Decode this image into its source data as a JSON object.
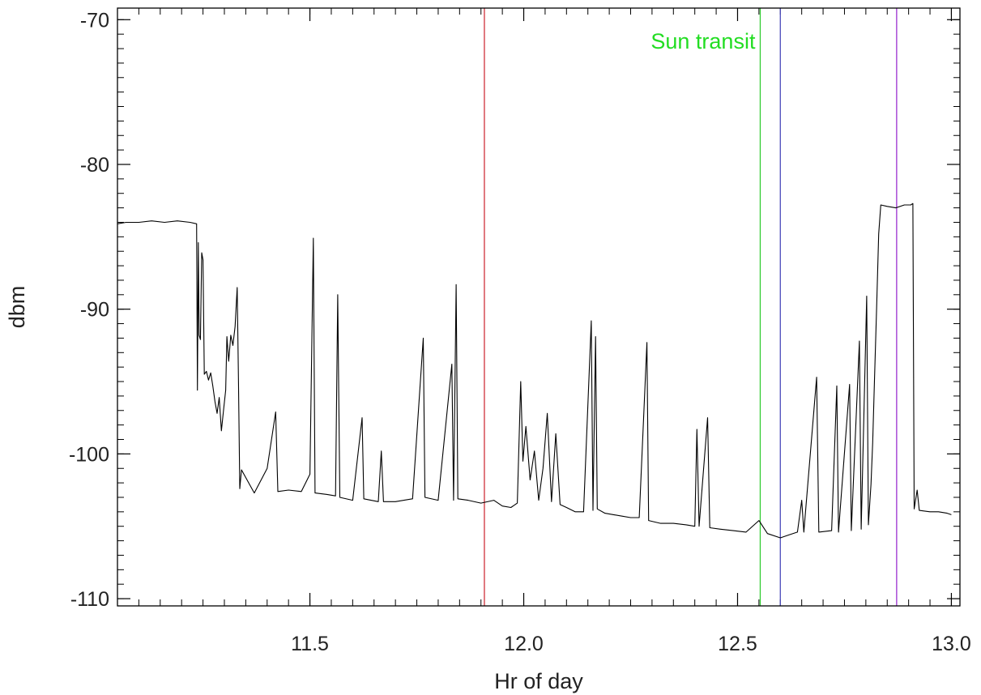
{
  "chart_data": {
    "type": "line",
    "title": "",
    "xlabel": "Hr of day",
    "ylabel": "dbm",
    "xlim": [
      11.05,
      13.02
    ],
    "ylim": [
      -110.5,
      -69.2
    ],
    "x_ticks": [
      11.5,
      12.0,
      12.5,
      13.0
    ],
    "x_tick_labels": [
      "11.5",
      "12.0",
      "12.5",
      "13.0"
    ],
    "x_minor_step": 0.05,
    "y_ticks": [
      -110,
      -100,
      -90,
      -80,
      -70
    ],
    "y_tick_labels": [
      "-110",
      "-100",
      "-90",
      "-80",
      "-70"
    ],
    "y_minor_step": 1,
    "grid": false,
    "series": [
      {
        "color": "#000000",
        "points": [
          [
            11.05,
            -84.1
          ],
          [
            11.07,
            -84.0
          ],
          [
            11.1,
            -84.0
          ],
          [
            11.13,
            -83.9
          ],
          [
            11.16,
            -84.0
          ],
          [
            11.19,
            -83.9
          ],
          [
            11.22,
            -84.0
          ],
          [
            11.235,
            -84.1
          ],
          [
            11.237,
            -95.6
          ],
          [
            11.239,
            -85.4
          ],
          [
            11.241,
            -91.8
          ],
          [
            11.244,
            -92.1
          ],
          [
            11.247,
            -86.1
          ],
          [
            11.25,
            -86.6
          ],
          [
            11.253,
            -94.5
          ],
          [
            11.258,
            -94.3
          ],
          [
            11.263,
            -94.9
          ],
          [
            11.268,
            -94.4
          ],
          [
            11.273,
            -95.3
          ],
          [
            11.278,
            -96.4
          ],
          [
            11.283,
            -97.2
          ],
          [
            11.288,
            -96.1
          ],
          [
            11.293,
            -98.4
          ],
          [
            11.298,
            -97.0
          ],
          [
            11.303,
            -95.6
          ],
          [
            11.306,
            -91.9
          ],
          [
            11.31,
            -93.6
          ],
          [
            11.315,
            -91.8
          ],
          [
            11.32,
            -92.5
          ],
          [
            11.325,
            -91.2
          ],
          [
            11.33,
            -88.5
          ],
          [
            11.333,
            -95.0
          ],
          [
            11.336,
            -102.4
          ],
          [
            11.34,
            -101.1
          ],
          [
            11.37,
            -102.7
          ],
          [
            11.4,
            -101.0
          ],
          [
            11.42,
            -97.1
          ],
          [
            11.425,
            -102.6
          ],
          [
            11.45,
            -102.5
          ],
          [
            11.48,
            -102.6
          ],
          [
            11.5,
            -101.4
          ],
          [
            11.508,
            -85.1
          ],
          [
            11.512,
            -102.7
          ],
          [
            11.54,
            -102.8
          ],
          [
            11.56,
            -102.9
          ],
          [
            11.565,
            -89.0
          ],
          [
            11.57,
            -103.0
          ],
          [
            11.6,
            -103.2
          ],
          [
            11.622,
            -97.5
          ],
          [
            11.626,
            -103.1
          ],
          [
            11.66,
            -103.3
          ],
          [
            11.667,
            -99.8
          ],
          [
            11.672,
            -103.3
          ],
          [
            11.7,
            -103.3
          ],
          [
            11.74,
            -103.1
          ],
          [
            11.765,
            -92.0
          ],
          [
            11.769,
            -103.0
          ],
          [
            11.8,
            -103.2
          ],
          [
            11.832,
            -93.8
          ],
          [
            11.836,
            -103.2
          ],
          [
            11.842,
            -88.3
          ],
          [
            11.846,
            -103.1
          ],
          [
            11.87,
            -103.2
          ],
          [
            11.9,
            -103.4
          ],
          [
            11.93,
            -103.2
          ],
          [
            11.95,
            -103.6
          ],
          [
            11.97,
            -103.7
          ],
          [
            11.985,
            -103.4
          ],
          [
            11.993,
            -95.0
          ],
          [
            11.998,
            -100.5
          ],
          [
            12.005,
            -98.1
          ],
          [
            12.015,
            -101.8
          ],
          [
            12.025,
            -99.8
          ],
          [
            12.035,
            -103.2
          ],
          [
            12.045,
            -101.0
          ],
          [
            12.055,
            -97.2
          ],
          [
            12.065,
            -103.3
          ],
          [
            12.075,
            -98.6
          ],
          [
            12.085,
            -103.5
          ],
          [
            12.1,
            -103.7
          ],
          [
            12.12,
            -104.0
          ],
          [
            12.14,
            -104.0
          ],
          [
            12.158,
            -90.8
          ],
          [
            12.162,
            -103.9
          ],
          [
            12.168,
            -91.9
          ],
          [
            12.172,
            -103.8
          ],
          [
            12.19,
            -104.1
          ],
          [
            12.21,
            -104.2
          ],
          [
            12.23,
            -104.3
          ],
          [
            12.25,
            -104.4
          ],
          [
            12.27,
            -104.4
          ],
          [
            12.288,
            -92.3
          ],
          [
            12.292,
            -104.6
          ],
          [
            12.32,
            -104.8
          ],
          [
            12.35,
            -104.8
          ],
          [
            12.38,
            -104.9
          ],
          [
            12.4,
            -105.0
          ],
          [
            12.405,
            -98.3
          ],
          [
            12.41,
            -105.0
          ],
          [
            12.43,
            -97.5
          ],
          [
            12.435,
            -105.1
          ],
          [
            12.46,
            -105.2
          ],
          [
            12.49,
            -105.3
          ],
          [
            12.52,
            -105.4
          ],
          [
            12.55,
            -104.6
          ],
          [
            12.57,
            -105.5
          ],
          [
            12.6,
            -105.8
          ],
          [
            12.62,
            -105.6
          ],
          [
            12.64,
            -105.4
          ],
          [
            12.65,
            -103.2
          ],
          [
            12.655,
            -105.4
          ],
          [
            12.685,
            -94.7
          ],
          [
            12.69,
            -105.4
          ],
          [
            12.72,
            -105.3
          ],
          [
            12.732,
            -95.3
          ],
          [
            12.736,
            -105.4
          ],
          [
            12.762,
            -95.2
          ],
          [
            12.766,
            -105.3
          ],
          [
            12.785,
            -92.2
          ],
          [
            12.789,
            -105.2
          ],
          [
            12.802,
            -89.1
          ],
          [
            12.806,
            -104.9
          ],
          [
            12.812,
            -102.1
          ],
          [
            12.816,
            -99.2
          ],
          [
            12.82,
            -95.1
          ],
          [
            12.825,
            -90.0
          ],
          [
            12.83,
            -84.8
          ],
          [
            12.835,
            -82.8
          ],
          [
            12.85,
            -82.9
          ],
          [
            12.87,
            -83.0
          ],
          [
            12.89,
            -82.8
          ],
          [
            12.905,
            -82.8
          ],
          [
            12.91,
            -82.7
          ],
          [
            12.913,
            -103.8
          ],
          [
            12.92,
            -102.5
          ],
          [
            12.925,
            -103.9
          ],
          [
            12.95,
            -104.0
          ],
          [
            12.97,
            -104.0
          ],
          [
            12.99,
            -104.1
          ],
          [
            13.0,
            -104.2
          ]
        ]
      }
    ],
    "vlines": [
      {
        "x": 11.908,
        "color": "#d0303a"
      },
      {
        "x": 12.553,
        "color": "#33cc33"
      },
      {
        "x": 12.6,
        "color": "#4b4bbb"
      },
      {
        "x": 12.872,
        "color": "#9b30d0"
      }
    ],
    "annotations": [
      {
        "text": "Sun transit",
        "x": 12.553,
        "y": -71.5,
        "color": "#22dd22",
        "anchor": "end"
      }
    ]
  }
}
